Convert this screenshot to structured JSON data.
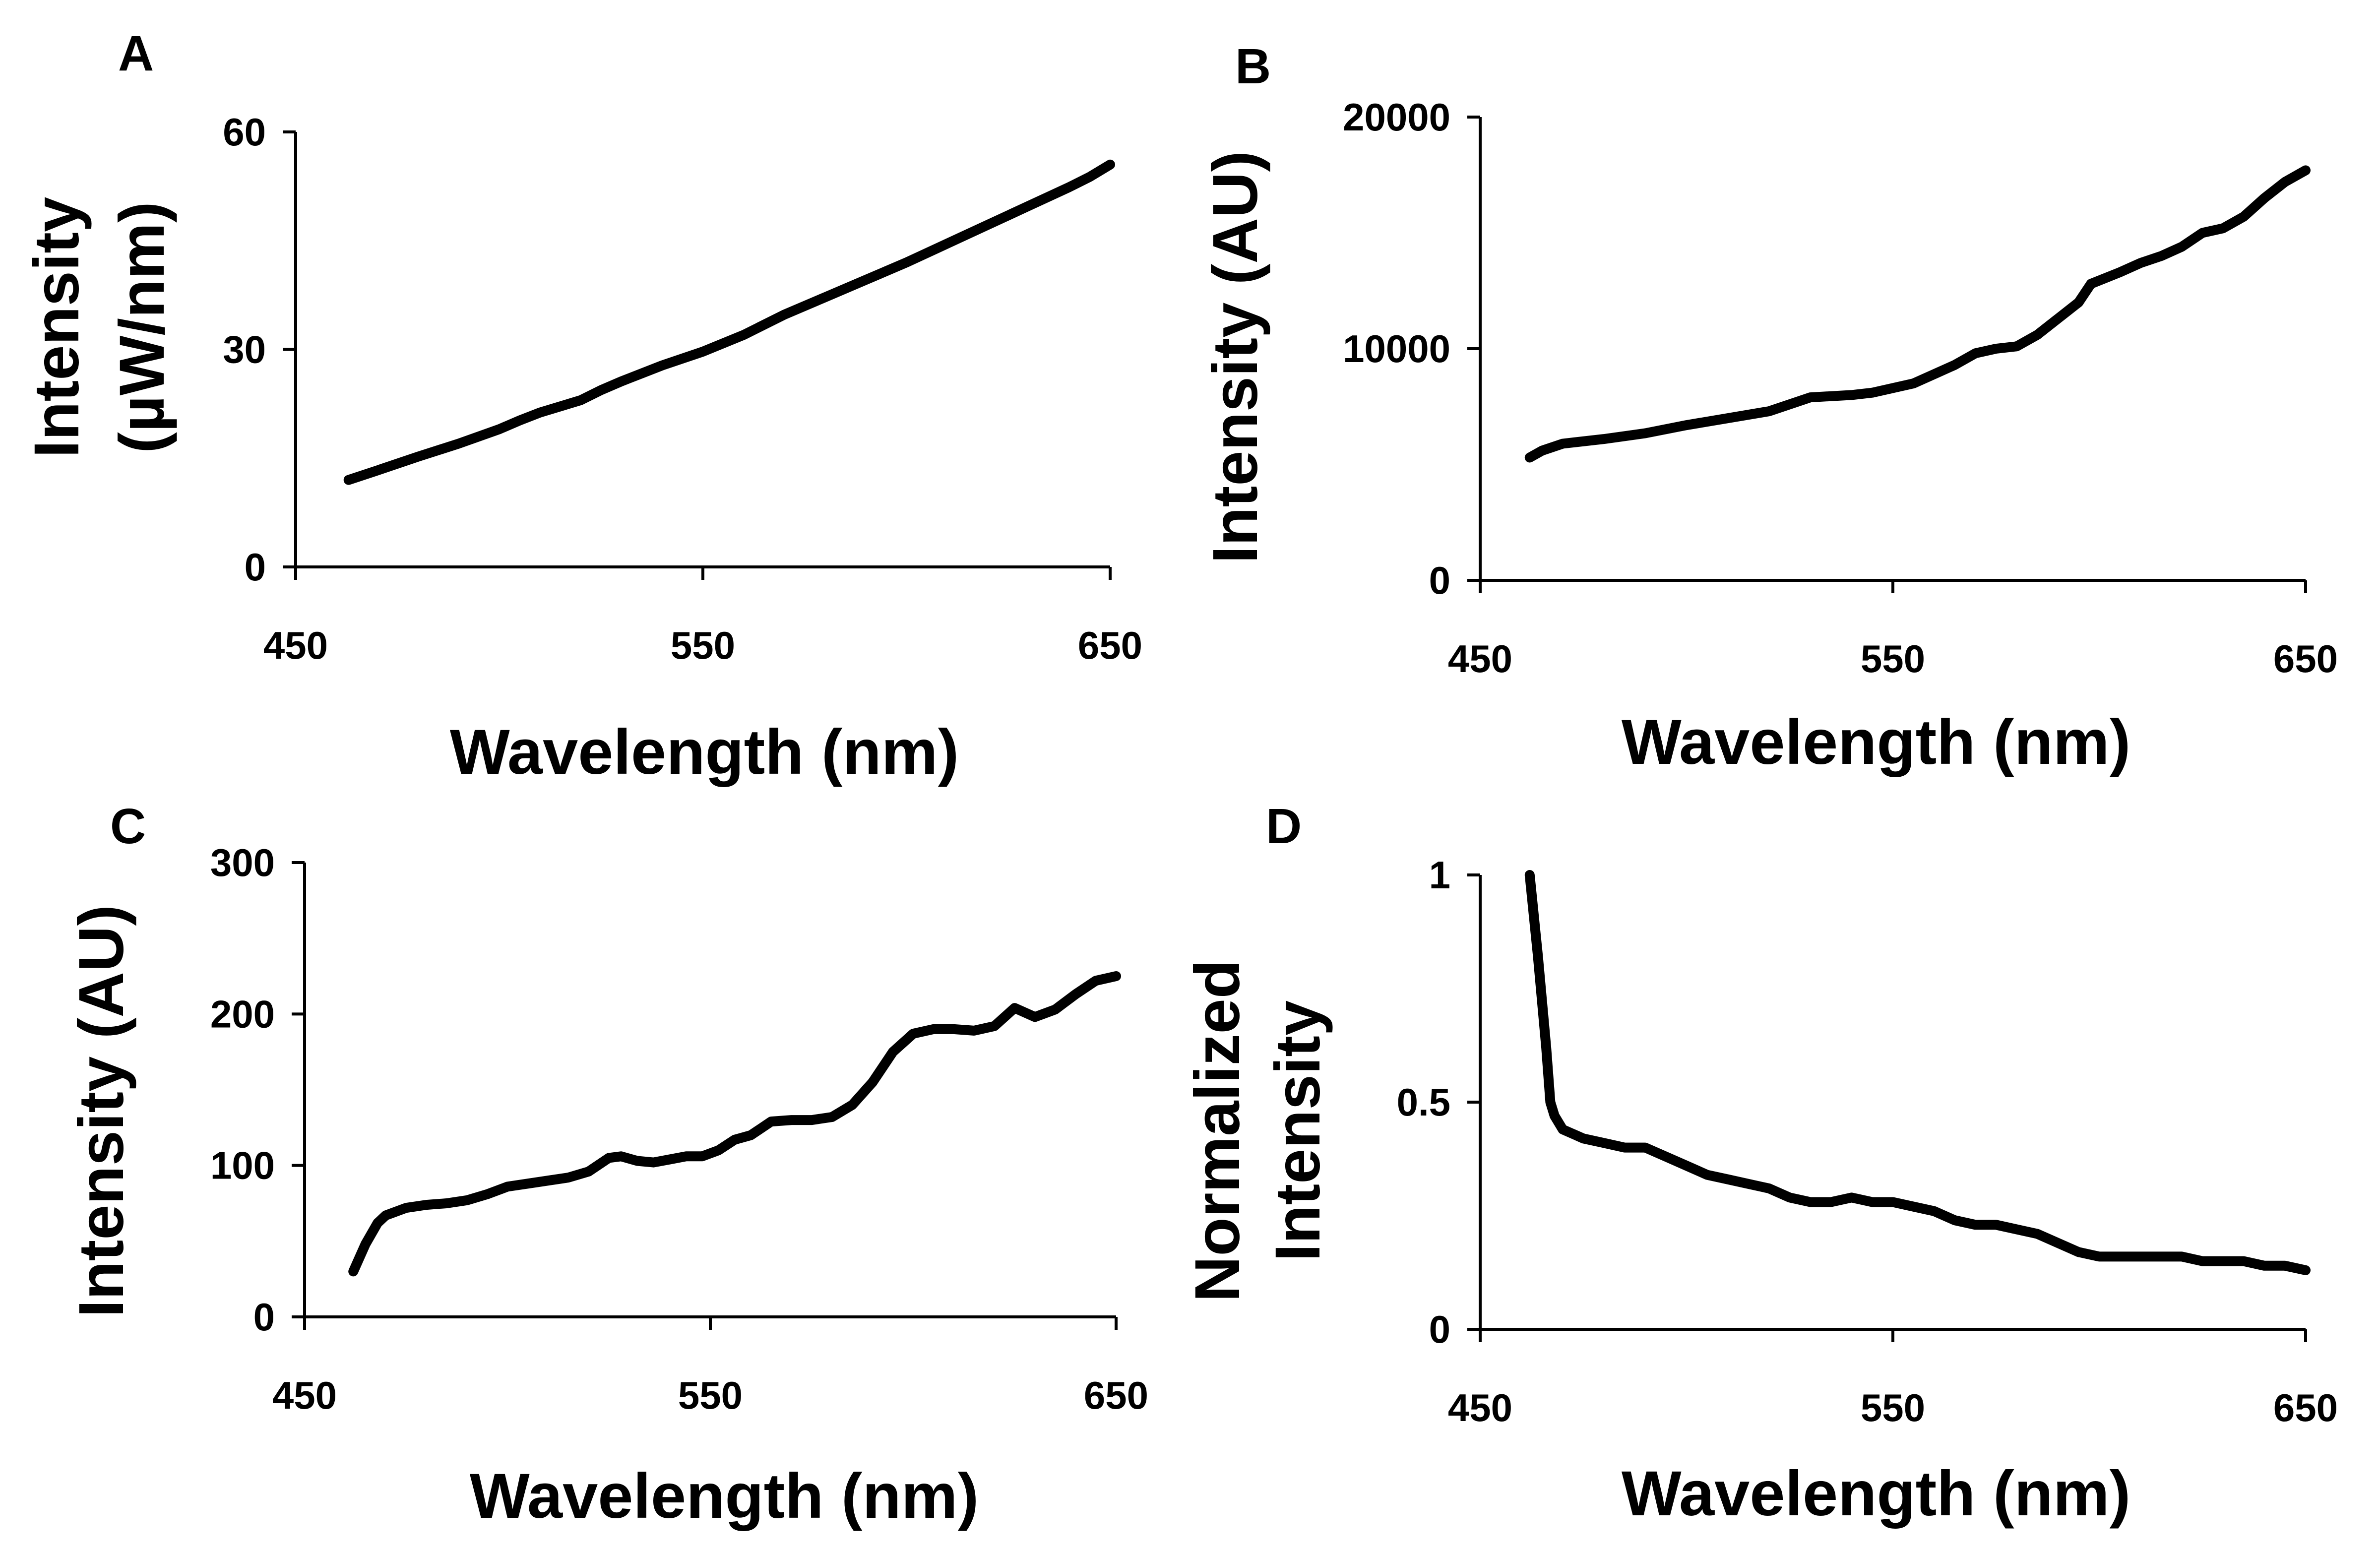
{
  "figure": {
    "panels": [
      "A",
      "B",
      "C",
      "D"
    ]
  },
  "chart_data": [
    {
      "panel": "A",
      "type": "line",
      "xlabel": "Wavelength (nm)",
      "ylabel": [
        "Intensity",
        "(µW/nm)"
      ],
      "xlim": [
        450,
        650
      ],
      "ylim": [
        0,
        60
      ],
      "xticks": [
        "450",
        "550",
        "650"
      ],
      "yticks": [
        "0",
        "30",
        "60"
      ],
      "x": [
        463,
        470,
        480,
        490,
        500,
        505,
        510,
        520,
        525,
        530,
        540,
        550,
        560,
        570,
        580,
        590,
        600,
        610,
        620,
        630,
        640,
        645,
        650
      ],
      "y": [
        12,
        13.3,
        15.2,
        17,
        19,
        20.2,
        21.3,
        23,
        24.4,
        25.6,
        27.8,
        29.7,
        32,
        34.8,
        37.2,
        39.6,
        42,
        44.6,
        47.2,
        49.8,
        52.4,
        53.8,
        55.5
      ]
    },
    {
      "panel": "B",
      "type": "line",
      "xlabel": "Wavelength (nm)",
      "ylabel": [
        "Intensity (AU)"
      ],
      "xlim": [
        450,
        650
      ],
      "ylim": [
        0,
        20000
      ],
      "xticks": [
        "450",
        "550",
        "650"
      ],
      "yticks": [
        "0",
        "10000",
        "20000"
      ],
      "x": [
        462,
        465,
        470,
        480,
        490,
        500,
        510,
        520,
        525,
        530,
        540,
        545,
        550,
        555,
        560,
        565,
        570,
        575,
        580,
        585,
        590,
        595,
        598,
        605,
        610,
        615,
        620,
        625,
        630,
        635,
        640,
        645,
        650
      ],
      "y": [
        5300,
        5600,
        5900,
        6100,
        6350,
        6700,
        7000,
        7300,
        7600,
        7900,
        8000,
        8100,
        8300,
        8500,
        8900,
        9300,
        9800,
        10000,
        10100,
        10600,
        11300,
        12000,
        12800,
        13300,
        13700,
        14000,
        14400,
        15000,
        15200,
        15700,
        16500,
        17200,
        17700
      ]
    },
    {
      "panel": "C",
      "type": "line",
      "xlabel": "Wavelength (nm)",
      "ylabel": [
        "Intensity (AU)"
      ],
      "xlim": [
        450,
        650
      ],
      "ylim": [
        0,
        300
      ],
      "xticks": [
        "450",
        "550",
        "650"
      ],
      "yticks": [
        "0",
        "100",
        "200",
        "300"
      ],
      "x": [
        462,
        465,
        468,
        470,
        475,
        480,
        485,
        490,
        495,
        500,
        505,
        510,
        515,
        520,
        525,
        528,
        532,
        536,
        540,
        544,
        548,
        552,
        556,
        560,
        565,
        570,
        575,
        580,
        585,
        590,
        595,
        600,
        605,
        610,
        615,
        620,
        625,
        630,
        635,
        640,
        645,
        650
      ],
      "y": [
        30,
        48,
        62,
        67,
        72,
        74,
        75,
        77,
        81,
        86,
        88,
        90,
        92,
        96,
        105,
        106,
        103,
        102,
        104,
        106,
        106,
        110,
        117,
        120,
        129,
        130,
        130,
        132,
        140,
        155,
        175,
        187,
        190,
        190,
        189,
        192,
        204,
        198,
        203,
        213,
        222,
        225
      ]
    },
    {
      "panel": "D",
      "type": "line",
      "xlabel": "Wavelength (nm)",
      "ylabel": [
        "Normalized",
        "Intensity"
      ],
      "xlim": [
        450,
        650
      ],
      "ylim": [
        0,
        1
      ],
      "xticks": [
        "450",
        "550",
        "650"
      ],
      "yticks": [
        "0",
        "0.5",
        "1"
      ],
      "x": [
        462,
        464,
        466,
        467,
        468,
        470,
        475,
        480,
        485,
        490,
        495,
        500,
        505,
        510,
        515,
        520,
        525,
        530,
        535,
        540,
        545,
        550,
        555,
        560,
        565,
        570,
        575,
        580,
        585,
        590,
        595,
        600,
        605,
        610,
        615,
        620,
        625,
        630,
        635,
        640,
        645,
        650
      ],
      "y": [
        1,
        0.82,
        0.62,
        0.5,
        0.47,
        0.44,
        0.42,
        0.41,
        0.4,
        0.4,
        0.38,
        0.36,
        0.34,
        0.33,
        0.32,
        0.31,
        0.29,
        0.28,
        0.28,
        0.29,
        0.28,
        0.28,
        0.27,
        0.26,
        0.24,
        0.23,
        0.23,
        0.22,
        0.21,
        0.19,
        0.17,
        0.16,
        0.16,
        0.16,
        0.16,
        0.16,
        0.15,
        0.15,
        0.15,
        0.14,
        0.14,
        0.13
      ]
    }
  ]
}
